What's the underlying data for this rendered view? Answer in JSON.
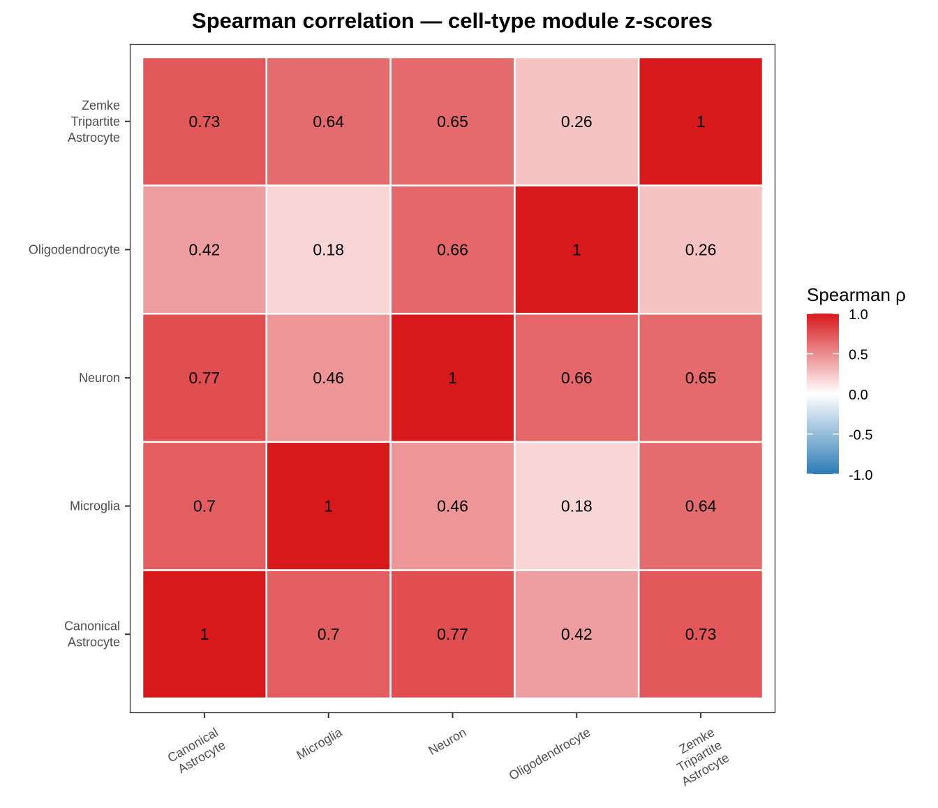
{
  "chart_data": {
    "type": "heatmap",
    "title": "Spearman correlation — cell-type module z-scores",
    "xlabel": "",
    "ylabel": "",
    "x_categories": [
      [
        "Canonical",
        "Astrocyte"
      ],
      [
        "Microglia"
      ],
      [
        "Neuron"
      ],
      [
        "Oligodendrocyte"
      ],
      [
        "Zemke",
        "Tripartite",
        "Astrocyte"
      ]
    ],
    "y_categories": [
      [
        "Canonical",
        "Astrocyte"
      ],
      [
        "Microglia"
      ],
      [
        "Neuron"
      ],
      [
        "Oligodendrocyte"
      ],
      [
        "Zemke",
        "Tripartite",
        "Astrocyte"
      ]
    ],
    "y_order_note": "y categories listed bottom to top",
    "matrix": [
      [
        1,
        0.7,
        0.77,
        0.42,
        0.73
      ],
      [
        0.7,
        1,
        0.46,
        0.18,
        0.64
      ],
      [
        0.77,
        0.46,
        1,
        0.66,
        0.65
      ],
      [
        0.42,
        0.18,
        0.66,
        1,
        0.26
      ],
      [
        0.73,
        0.64,
        0.65,
        0.26,
        1
      ]
    ],
    "cell_labels": [
      [
        "1",
        "0.7",
        "0.77",
        "0.42",
        "0.73"
      ],
      [
        "0.7",
        "1",
        "0.46",
        "0.18",
        "0.64"
      ],
      [
        "0.77",
        "0.46",
        "1",
        "0.66",
        "0.65"
      ],
      [
        "0.42",
        "0.18",
        "0.66",
        "1",
        "0.26"
      ],
      [
        "0.73",
        "0.64",
        "0.65",
        "0.26",
        "1"
      ]
    ],
    "color_scale": {
      "type": "diverging",
      "low": "#2c7bb6",
      "mid": "#ffffff",
      "high": "#d7191c",
      "range": [
        -1,
        1
      ],
      "midpoint": 0
    },
    "legend": {
      "title": "Spearman ρ",
      "ticks": [
        "1.0",
        "0.5",
        "0.0",
        "-0.5",
        "-1.0"
      ],
      "tick_values": [
        1,
        0.5,
        0,
        -0.5,
        -1
      ],
      "position": "right"
    },
    "grid": false
  }
}
